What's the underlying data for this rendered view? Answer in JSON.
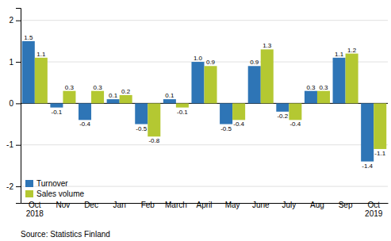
{
  "chart_data": {
    "type": "bar",
    "categories": [
      "Oct\n2018",
      "Nov",
      "Dec",
      "Jan",
      "Feb",
      "March",
      "April",
      "May",
      "June",
      "July",
      "Aug",
      "Sep",
      "Oct\n2019"
    ],
    "series": [
      {
        "name": "Turnover",
        "color": "#2e75b6",
        "values": [
          1.5,
          -0.1,
          -0.4,
          0.1,
          -0.5,
          0.1,
          1.0,
          -0.5,
          0.9,
          -0.2,
          0.3,
          1.1,
          -1.4
        ],
        "value_labels": [
          "1.5",
          "-0.1",
          "-0.4",
          "0.1",
          "-0.5",
          "0.1",
          "1.0",
          "-0.5",
          "0.9",
          "-0.2",
          "0.3",
          "1.1",
          "-1.4"
        ]
      },
      {
        "name": "Sales volume",
        "color": "#b4c832",
        "values": [
          1.1,
          0.3,
          0.3,
          0.2,
          -0.8,
          -0.1,
          0.9,
          -0.4,
          1.3,
          -0.4,
          0.3,
          1.2,
          -1.1
        ],
        "value_labels": [
          "1.1",
          "0.3",
          "0.3",
          "0.2",
          "-0.8",
          "-0.1",
          "0.9",
          "-0.4",
          "1.3",
          "-0.4",
          "0.3",
          "1.2",
          "-1.1"
        ]
      }
    ],
    "ylim": [
      -2.4,
      2.3
    ],
    "yticks": [
      -2,
      -1,
      0,
      1,
      2
    ],
    "grid": true,
    "legend": "lower left",
    "data_labels": true,
    "annotations": [
      "Source: Statistics Finland"
    ]
  }
}
